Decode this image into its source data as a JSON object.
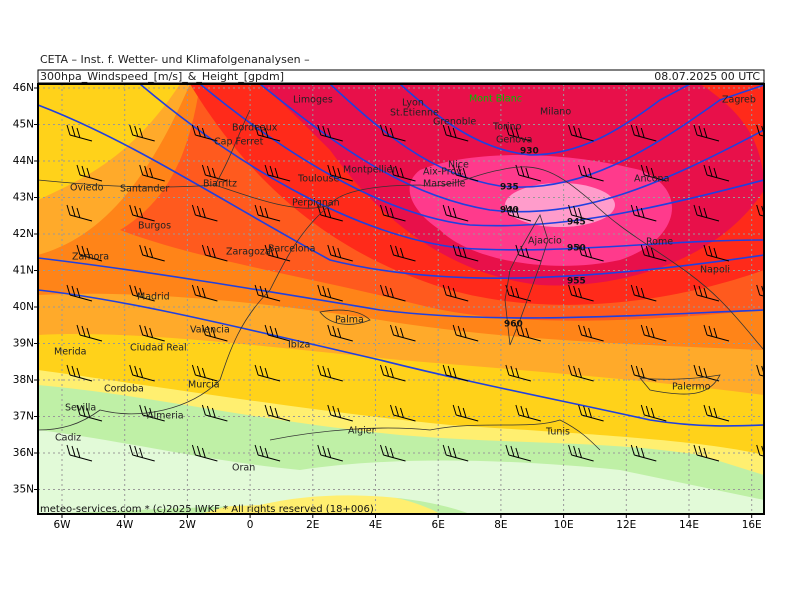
{
  "header": {
    "institute": "CETA – Inst. f. Wetter- und Klimafolgenanalysen –",
    "title": "300hpa_Windspeed_[m/s]_&_Height_[gpdm]",
    "valid_time": "08.07.2025 00 UTC"
  },
  "map": {
    "lat_labels": [
      "46N",
      "45N",
      "44N",
      "43N",
      "42N",
      "41N",
      "40N",
      "39N",
      "38N",
      "37N",
      "36N",
      "35N"
    ],
    "lon_labels": [
      "6W",
      "4W",
      "2W",
      "0",
      "2E",
      "4E",
      "6E",
      "8E",
      "10E",
      "12E",
      "14E",
      "16E"
    ],
    "landmark": "Mont Blanc",
    "cities": [
      "Limoges",
      "Lyon",
      "St.Etienne",
      "Grenoble",
      "Milano",
      "Torino",
      "Genova",
      "Bordeaux",
      "Cap Ferret",
      "Montpellier",
      "Toulouse",
      "Nice",
      "Aix-Prov.",
      "Marseille",
      "Biarritz",
      "Oviedo",
      "Santander",
      "Perpignan",
      "Burgos",
      "Zaragoza",
      "Barcelona",
      "Zamora",
      "Ajaccio",
      "Rome",
      "Ancona",
      "Zagreb",
      "Napoli",
      "Madrid",
      "Palma",
      "Valencia",
      "Ibiza",
      "Merida",
      "Ciudad Real",
      "Murcia",
      "Cordoba",
      "Sevilla",
      "Almeria",
      "Cadiz",
      "Algier",
      "Tunis",
      "Palermo",
      "Oran"
    ],
    "height_contours": [
      930,
      935,
      940,
      945,
      950,
      955,
      960
    ]
  },
  "footer": {
    "credit": "meteo-services.com * (c)2025 IWKF * All rights reserved (18+006)"
  }
}
